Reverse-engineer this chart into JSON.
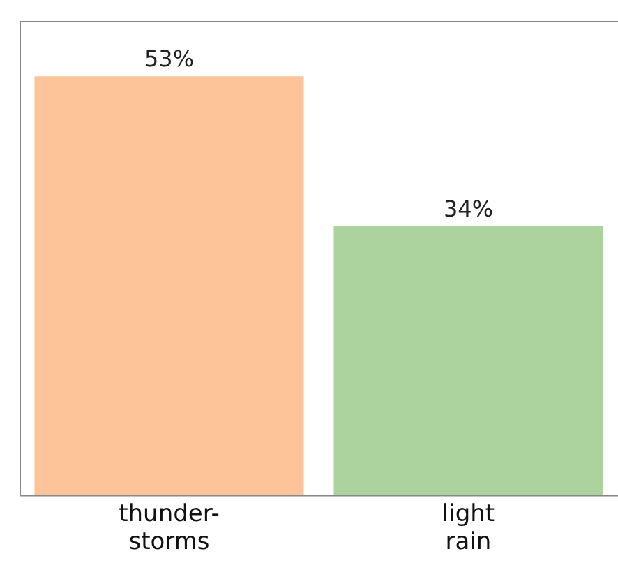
{
  "chart_data": {
    "type": "bar",
    "categories": [
      "thunder-\nstorms",
      "light\nrain"
    ],
    "values": [
      53,
      34
    ],
    "colors": [
      "#fdc49a",
      "#acd39e"
    ],
    "value_labels": [
      "53%",
      "34%"
    ],
    "tick_labels": "x",
    "legend": false,
    "grid": false
  }
}
